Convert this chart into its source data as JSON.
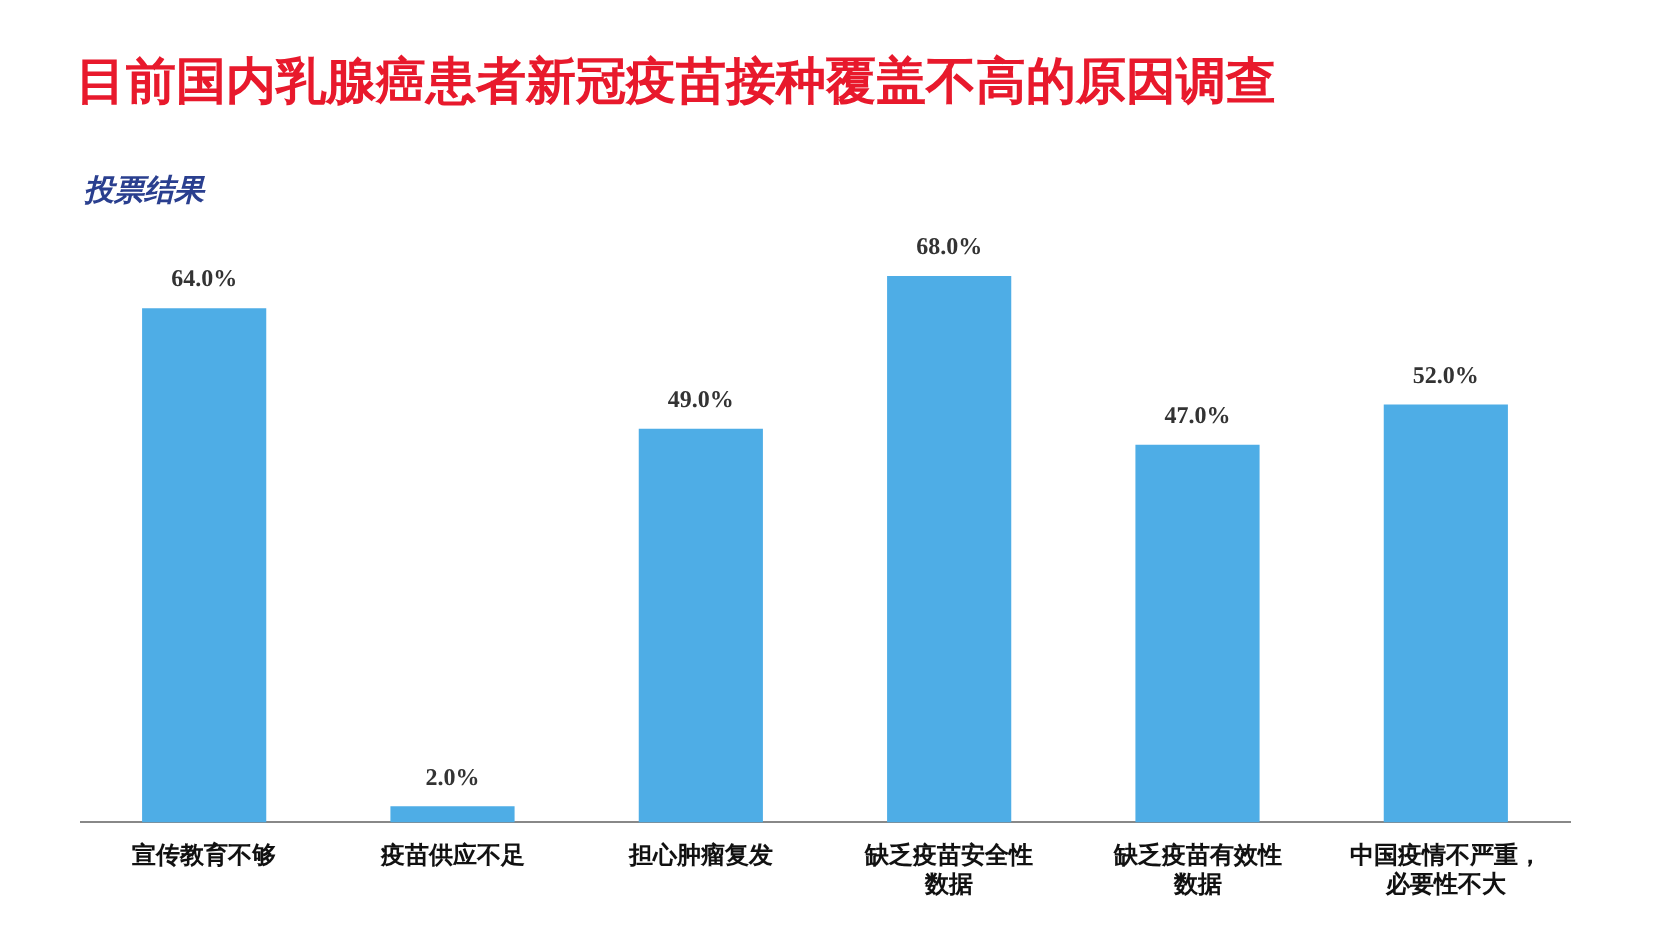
{
  "chart_data": {
    "type": "bar",
    "title": "目前国内乳腺癌患者新冠疫苗接种覆盖不高的原因调查",
    "subtitle": "投票结果",
    "categories": [
      "宣传教育不够",
      "疫苗供应不足",
      "担心肿瘤复发",
      "缺乏疫苗安全性数据",
      "缺乏疫苗有效性数据",
      "中国疫情不严重，必要性不大"
    ],
    "values": [
      64,
      2,
      49,
      68,
      47,
      52
    ],
    "value_labels": [
      "64.0%",
      "2.0%",
      "49.0%",
      "68.0%",
      "47.0%",
      "52.0%"
    ],
    "color": "#4eade6",
    "grid": false,
    "legend": false,
    "tick_labels": "x"
  }
}
